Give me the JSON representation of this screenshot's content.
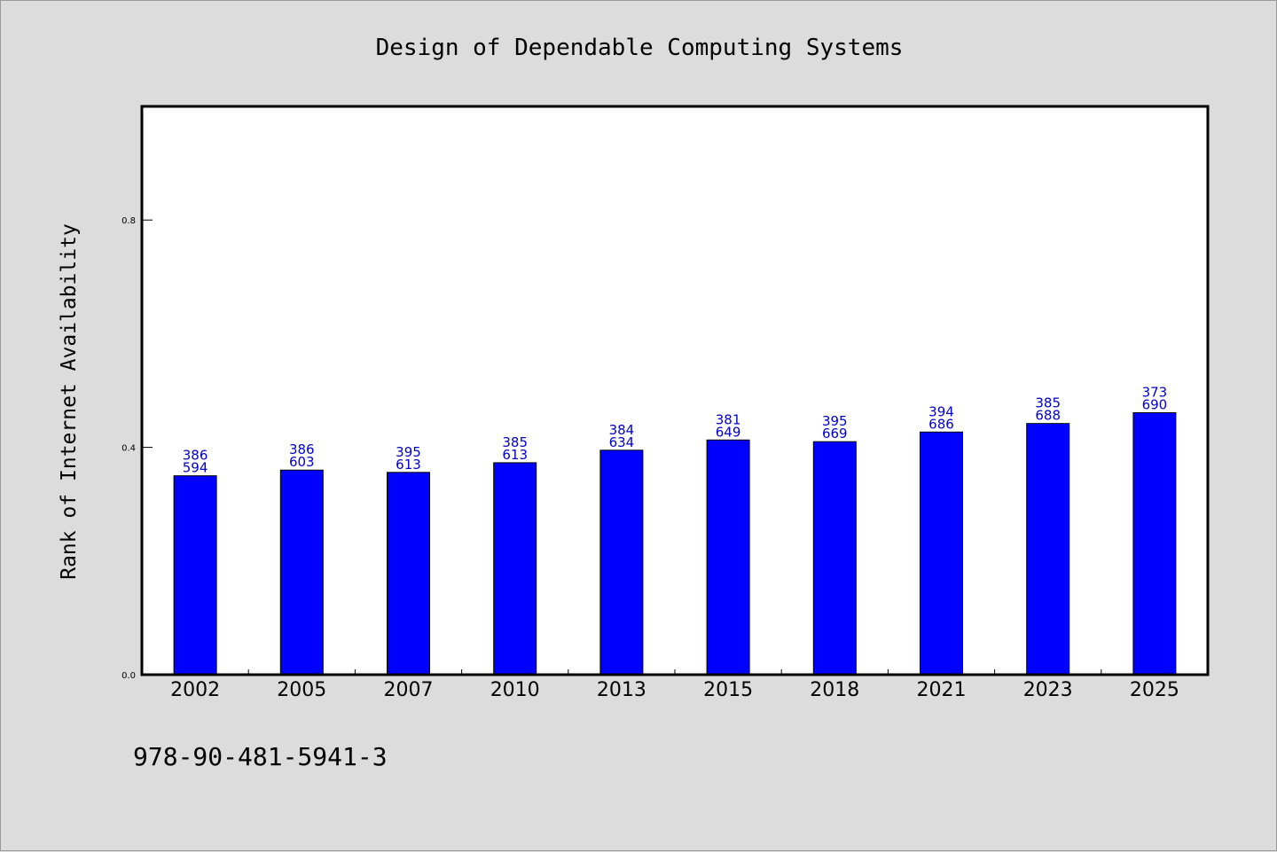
{
  "chart_data": {
    "type": "bar",
    "title": "Design of Dependable Computing Systems",
    "xlabel": "",
    "ylabel": "Rank of Internet Availability",
    "categories": [
      "2002",
      "2005",
      "2007",
      "2010",
      "2013",
      "2015",
      "2018",
      "2021",
      "2023",
      "2025"
    ],
    "values": [
      0.35,
      0.36,
      0.356,
      0.373,
      0.395,
      0.413,
      0.41,
      0.427,
      0.442,
      0.461
    ],
    "data_labels": [
      [
        "386",
        "594"
      ],
      [
        "386",
        "603"
      ],
      [
        "395",
        "613"
      ],
      [
        "385",
        "613"
      ],
      [
        "384",
        "634"
      ],
      [
        "381",
        "649"
      ],
      [
        "395",
        "669"
      ],
      [
        "394",
        "686"
      ],
      [
        "385",
        "688"
      ],
      [
        "373",
        "690"
      ]
    ],
    "yticks": [
      0.0,
      0.4,
      0.8
    ],
    "ytick_labels": [
      "0.0",
      "0.4",
      "0.8"
    ],
    "ylim": [
      0,
      1.0
    ],
    "grid": false,
    "bar_color": "#0000ff",
    "label_color": "#0000cc"
  },
  "footer": {
    "isbn": "978-90-481-5941-3"
  }
}
